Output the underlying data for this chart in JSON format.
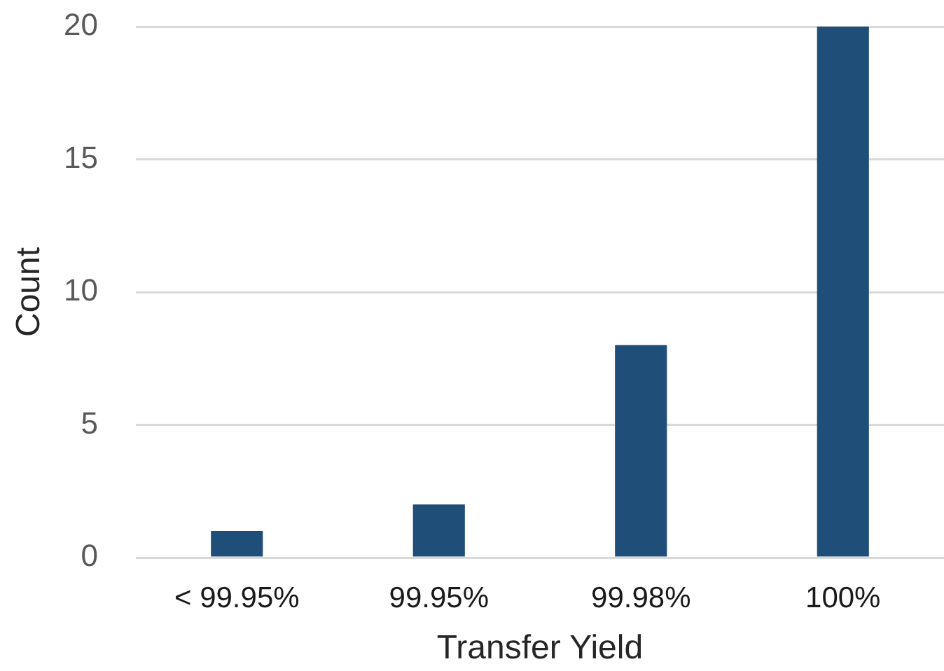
{
  "chart_data": {
    "type": "bar",
    "xlabel": "Transfer Yield",
    "ylabel": "Count",
    "categories": [
      "< 99.95%",
      "99.95%",
      "99.98%",
      "100%"
    ],
    "values": [
      1,
      2,
      8,
      20
    ],
    "color": "#1f4e79",
    "ylim": [
      0,
      20
    ],
    "yticks": [
      0,
      5,
      10,
      15,
      20
    ],
    "grid": "y"
  }
}
